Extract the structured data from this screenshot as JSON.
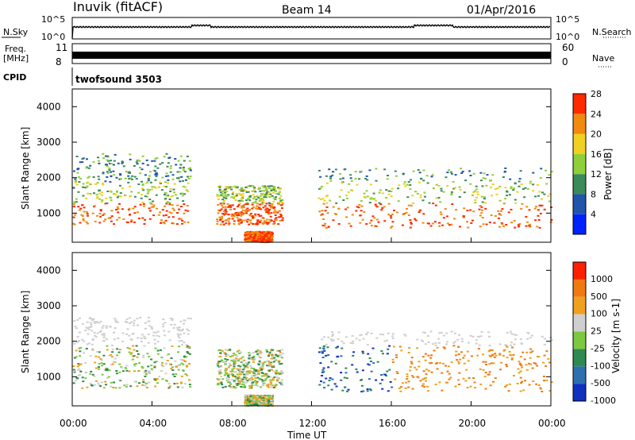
{
  "header": {
    "station": "Inuvik (fitACF)",
    "beam": "Beam 14",
    "date": "01/Apr/2016"
  },
  "labels": {
    "nsky": "N.Sky",
    "nsearch": "N.Search",
    "freq_line1": "Freq.",
    "freq_line2": "[MHz]",
    "nave": "Nave",
    "cpid": "CPID",
    "cpid_value": "twofsound 3503"
  },
  "chart_data": [
    {
      "type": "line",
      "panel": "noise",
      "left_ticks": [
        "10^5",
        "10^0"
      ],
      "right_ticks": [
        "10^5",
        "10^0"
      ],
      "left_label": "N.Sky",
      "right_label": "N.Search"
    },
    {
      "type": "line",
      "panel": "frequency",
      "left_ticks": [
        "11",
        "8"
      ],
      "right_ticks": [
        "60",
        "0"
      ],
      "left_label": "Freq. [MHz]",
      "right_label": "Nave"
    },
    {
      "type": "heatmap",
      "panel": "power",
      "ylabel": "Slant Range [km]",
      "xlabel": "Time UT",
      "x_ticks": [
        "00:00",
        "04:00",
        "08:00",
        "12:00",
        "16:00",
        "20:00",
        "00:00"
      ],
      "y_ticks": [
        1000,
        2000,
        3000,
        4000
      ],
      "ylim": [
        180,
        4500
      ],
      "colorbar": {
        "label": "Power [dB]",
        "ticks": [
          4,
          8,
          12,
          16,
          20,
          24,
          28
        ],
        "colors": [
          "#0022ff",
          "#2255aa",
          "#3a8a5a",
          "#8fcf3a",
          "#f0d020",
          "#f08a10",
          "#ff2a00"
        ]
      }
    },
    {
      "type": "heatmap",
      "panel": "velocity",
      "ylabel": "Slant Range [km]",
      "xlabel": "Time UT",
      "x_ticks": [
        "00:00",
        "04:00",
        "08:00",
        "12:00",
        "16:00",
        "20:00",
        "00:00"
      ],
      "y_ticks": [
        1000,
        2000,
        3000,
        4000
      ],
      "ylim": [
        180,
        4500
      ],
      "colorbar": {
        "label": "Velocity [m s-1]",
        "ticks": [
          1000,
          500,
          100,
          25,
          -25,
          -100,
          -500,
          -1000
        ],
        "colors": [
          "#1030c0",
          "#2f6fb0",
          "#2e8a50",
          "#7cc940",
          "#cfcfcf",
          "#f0a020",
          "#f07a10",
          "#ff2000"
        ]
      }
    }
  ]
}
